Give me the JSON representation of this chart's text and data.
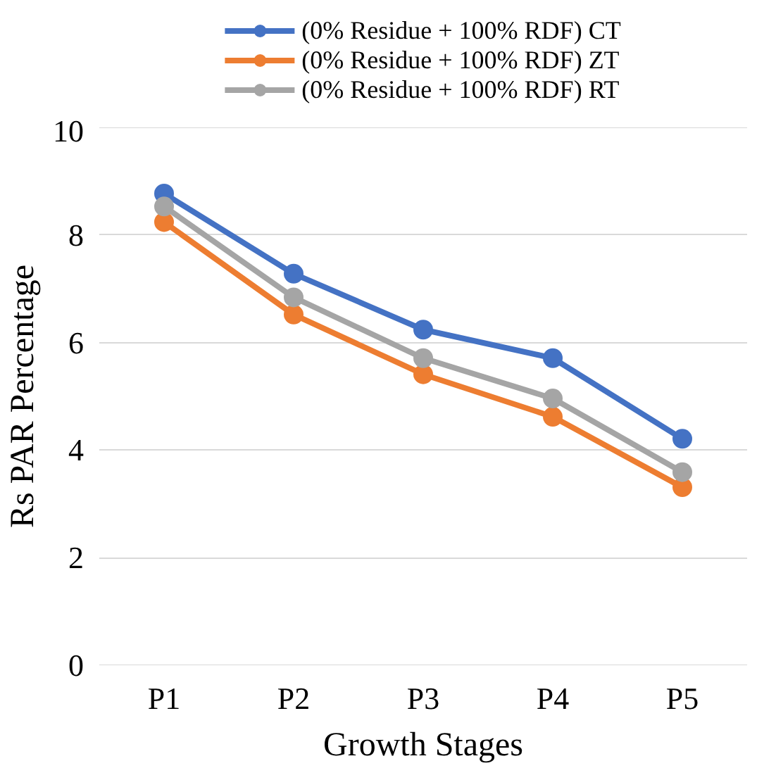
{
  "chart_data": {
    "type": "line",
    "xlabel": "Growth Stages",
    "ylabel": "Rs PAR Percentage",
    "categories": [
      "P1",
      "P2",
      "P3",
      "P4",
      "P5"
    ],
    "series": [
      {
        "name": "(0% Residue + 100% RDF) CT",
        "color": "#4472c4",
        "values": [
          8.77,
          7.28,
          6.24,
          5.71,
          4.21
        ]
      },
      {
        "name": "(0% Residue + 100% RDF) ZT",
        "color": "#ed7d31",
        "values": [
          8.24,
          6.52,
          5.41,
          4.62,
          3.31
        ]
      },
      {
        "name": "(0% Residue + 100% RDF) RT",
        "color": "#a5a5a5",
        "values": [
          8.53,
          6.84,
          5.71,
          4.96,
          3.59
        ]
      }
    ],
    "ylim": [
      0,
      10
    ],
    "yticks": [
      0,
      2,
      4,
      6,
      8,
      10
    ],
    "grid": "y",
    "legend": "top",
    "marker": "circle",
    "line_style": "solid"
  }
}
